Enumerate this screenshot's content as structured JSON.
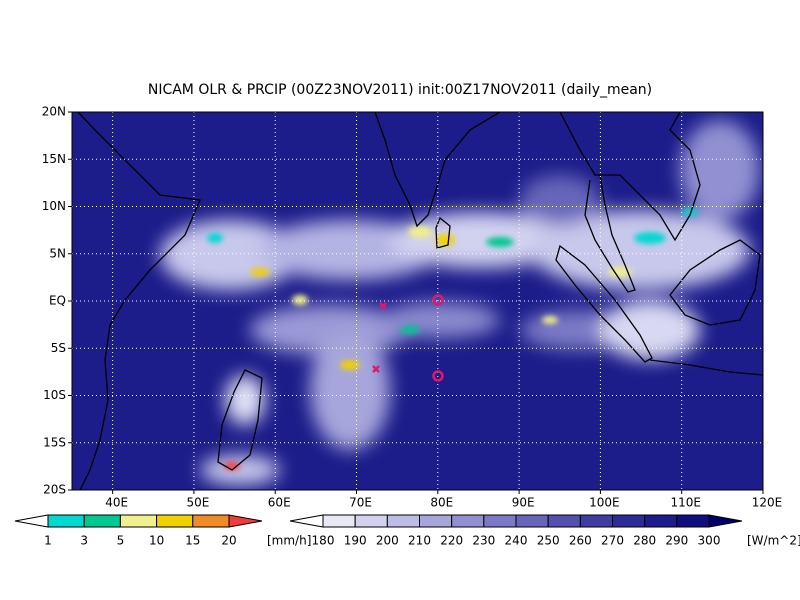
{
  "title": "NICAM OLR & PRCIP (00Z23NOV2011) init:00Z17NOV2011 (daily_mean)",
  "map": {
    "lon_range": [
      35,
      120
    ],
    "lat_range": [
      -20,
      20
    ],
    "lat_ticks": [
      {
        "value": 20,
        "label": "20N"
      },
      {
        "value": 15,
        "label": "15N"
      },
      {
        "value": 10,
        "label": "10N"
      },
      {
        "value": 5,
        "label": "5N"
      },
      {
        "value": 0,
        "label": "EQ"
      },
      {
        "value": -5,
        "label": "5S"
      },
      {
        "value": -10,
        "label": "10S"
      },
      {
        "value": -15,
        "label": "15S"
      },
      {
        "value": -20,
        "label": "20S"
      }
    ],
    "lon_ticks": [
      {
        "value": 40,
        "label": "40E"
      },
      {
        "value": 50,
        "label": "50E"
      },
      {
        "value": 60,
        "label": "60E"
      },
      {
        "value": 70,
        "label": "70E"
      },
      {
        "value": 80,
        "label": "80E"
      },
      {
        "value": 90,
        "label": "90E"
      },
      {
        "value": 100,
        "label": "100E"
      },
      {
        "value": 110,
        "label": "110E"
      },
      {
        "value": 120,
        "label": "120E"
      }
    ]
  },
  "precip_scale": {
    "unit": "[mm/h]",
    "levels": [
      1,
      3,
      5,
      10,
      15,
      20
    ],
    "colors": [
      "#ffffff",
      "#00d8d0",
      "#00c890",
      "#f0f08c",
      "#f0d200",
      "#f08c28",
      "#f03c3c"
    ]
  },
  "olr_scale": {
    "unit": "[W/m^2]",
    "levels": [
      180,
      190,
      200,
      210,
      220,
      230,
      240,
      250,
      260,
      270,
      280,
      290,
      300
    ],
    "colors": [
      "#ffffff",
      "#e8e8f6",
      "#d2d2ee",
      "#bcbce6",
      "#a6a6dc",
      "#9090d2",
      "#7a7ac6",
      "#6666ba",
      "#5252ae",
      "#3e3ea2",
      "#2c2c96",
      "#1c1c8a",
      "#0e0e7c",
      "#00006a"
    ]
  }
}
